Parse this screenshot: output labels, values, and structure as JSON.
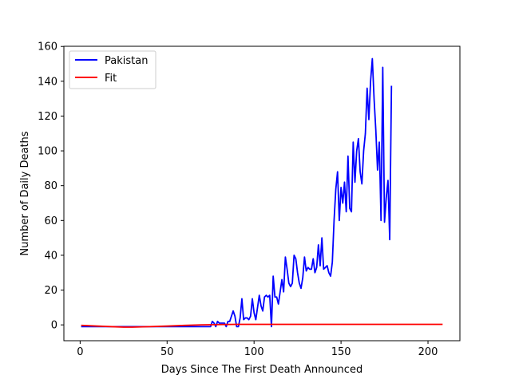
{
  "chart_data": {
    "type": "line",
    "title": "",
    "xlabel": "Days Since The First Death Announced",
    "ylabel": "Number of Daily Deaths",
    "xlim": [
      -9.35,
      218.35
    ],
    "ylim": [
      -9.1,
      160.1
    ],
    "xticks": [
      0,
      50,
      100,
      150,
      200
    ],
    "yticks": [
      0,
      20,
      40,
      60,
      80,
      100,
      120,
      140,
      160
    ],
    "grid": false,
    "legend": {
      "position": "top-left",
      "entries": [
        "Pakistan",
        "Fit"
      ]
    },
    "series": [
      {
        "name": "Pakistan",
        "color": "#0000ff",
        "points": [
          [
            1,
            -1
          ],
          [
            20,
            -1
          ],
          [
            40,
            -1
          ],
          [
            60,
            -1
          ],
          [
            75,
            -1
          ],
          [
            76,
            2
          ],
          [
            77,
            1
          ],
          [
            78,
            -1
          ],
          [
            79,
            2
          ],
          [
            80,
            1
          ],
          [
            81,
            1
          ],
          [
            82,
            1
          ],
          [
            83,
            1
          ],
          [
            84,
            -1
          ],
          [
            85,
            2
          ],
          [
            86,
            2
          ],
          [
            87,
            5
          ],
          [
            88,
            8
          ],
          [
            89,
            5
          ],
          [
            90,
            -1
          ],
          [
            91,
            -1
          ],
          [
            92,
            4
          ],
          [
            93,
            15
          ],
          [
            94,
            3
          ],
          [
            95,
            4
          ],
          [
            96,
            4
          ],
          [
            97,
            3
          ],
          [
            98,
            5
          ],
          [
            99,
            15
          ],
          [
            100,
            7
          ],
          [
            101,
            3
          ],
          [
            102,
            10
          ],
          [
            103,
            17
          ],
          [
            104,
            11
          ],
          [
            105,
            8
          ],
          [
            106,
            16
          ],
          [
            107,
            17
          ],
          [
            108,
            16
          ],
          [
            109,
            17
          ],
          [
            110,
            -1
          ],
          [
            111,
            28
          ],
          [
            112,
            16
          ],
          [
            113,
            16
          ],
          [
            114,
            12
          ],
          [
            115,
            19
          ],
          [
            116,
            26
          ],
          [
            117,
            19
          ],
          [
            118,
            39
          ],
          [
            119,
            32
          ],
          [
            120,
            24
          ],
          [
            121,
            22
          ],
          [
            122,
            24
          ],
          [
            123,
            40
          ],
          [
            124,
            38
          ],
          [
            125,
            30
          ],
          [
            126,
            24
          ],
          [
            127,
            21
          ],
          [
            128,
            27
          ],
          [
            129,
            39
          ],
          [
            130,
            31
          ],
          [
            131,
            33
          ],
          [
            132,
            32
          ],
          [
            133,
            32
          ],
          [
            134,
            38
          ],
          [
            135,
            30
          ],
          [
            136,
            33
          ],
          [
            137,
            46
          ],
          [
            138,
            34
          ],
          [
            139,
            50
          ],
          [
            140,
            32
          ],
          [
            141,
            33
          ],
          [
            142,
            34
          ],
          [
            143,
            30
          ],
          [
            144,
            28
          ],
          [
            145,
            36
          ],
          [
            146,
            60
          ],
          [
            147,
            78
          ],
          [
            148,
            88
          ],
          [
            149,
            60
          ],
          [
            150,
            79
          ],
          [
            151,
            70
          ],
          [
            152,
            82
          ],
          [
            153,
            65
          ],
          [
            154,
            97
          ],
          [
            155,
            67
          ],
          [
            156,
            65
          ],
          [
            157,
            105
          ],
          [
            158,
            82
          ],
          [
            159,
            100
          ],
          [
            160,
            107
          ],
          [
            161,
            88
          ],
          [
            162,
            81
          ],
          [
            163,
            100
          ],
          [
            164,
            110
          ],
          [
            165,
            136
          ],
          [
            166,
            118
          ],
          [
            167,
            140
          ],
          [
            168,
            153
          ],
          [
            169,
            130
          ],
          [
            170,
            112
          ],
          [
            171,
            89
          ],
          [
            172,
            105
          ],
          [
            173,
            60
          ],
          [
            174,
            148
          ],
          [
            175,
            59
          ],
          [
            176,
            73
          ],
          [
            177,
            83
          ],
          [
            178,
            49
          ],
          [
            179,
            137
          ]
        ]
      },
      {
        "name": "Fit",
        "color": "#ff0000",
        "points": [
          [
            1,
            -0.3
          ],
          [
            10,
            -0.7
          ],
          [
            20,
            -1.1
          ],
          [
            25,
            -1.3
          ],
          [
            30,
            -1.3
          ],
          [
            40,
            -1.0
          ],
          [
            50,
            -0.7
          ],
          [
            60,
            -0.3
          ],
          [
            70,
            0.0
          ],
          [
            80,
            0.2
          ],
          [
            90,
            0.3
          ],
          [
            100,
            0.3
          ],
          [
            120,
            0.3
          ],
          [
            150,
            0.3
          ],
          [
            180,
            0.3
          ],
          [
            208,
            0.3
          ]
        ]
      }
    ]
  }
}
